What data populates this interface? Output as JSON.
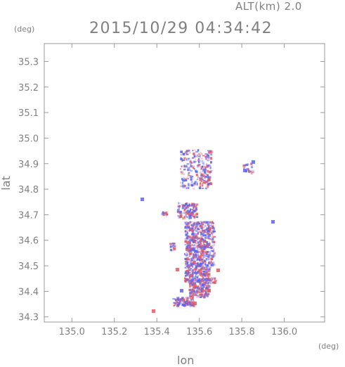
{
  "header": {
    "altitude_label": "ALT(km) 2.0",
    "timestamp": "2015/10/29 04:34:42"
  },
  "axes": {
    "y_unit": "(deg)",
    "x_unit": "(deg)",
    "y_title": "lat",
    "x_title": "lon"
  },
  "chart_data": {
    "type": "heatmap",
    "xlabel": "lon",
    "ylabel": "lat",
    "xlim": [
      134.87,
      136.19
    ],
    "ylim": [
      34.28,
      35.37
    ],
    "x_ticks": [
      "135.0",
      "135.2",
      "135.4",
      "135.6",
      "135.8",
      "136.0"
    ],
    "y_ticks": [
      "34.3",
      "34.4",
      "34.5",
      "34.6",
      "34.7",
      "34.8",
      "34.9",
      "35.0",
      "35.1",
      "35.2",
      "35.3"
    ],
    "grid": false,
    "colors": {
      "positive": "#e8585c",
      "negative": "#5c64f0",
      "axis": "#9a9a9a",
      "text": "#808080"
    }
  }
}
